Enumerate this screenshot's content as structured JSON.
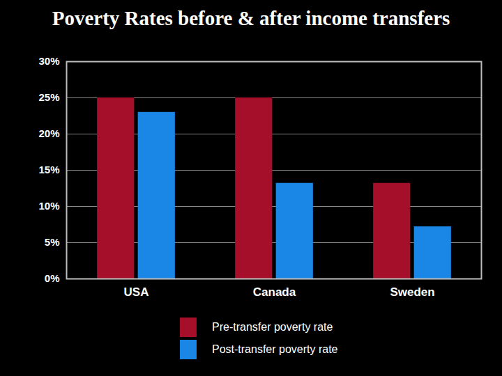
{
  "chart_data": {
    "type": "bar",
    "title": "Poverty Rates before & after income transfers",
    "categories": [
      "USA",
      "Canada",
      "Sweden"
    ],
    "series": [
      {
        "name": "Pre-transfer poverty rate",
        "color": "#a50f2a",
        "values": [
          25,
          25,
          13.2
        ]
      },
      {
        "name": "Post-transfer poverty rate",
        "color": "#1a86e6",
        "values": [
          23,
          13.2,
          7.2
        ]
      }
    ],
    "ylim": [
      0,
      30
    ],
    "yticks": [
      {
        "value": 0,
        "label": "0%"
      },
      {
        "value": 5,
        "label": "5%"
      },
      {
        "value": 10,
        "label": "10%"
      },
      {
        "value": 15,
        "label": "15%"
      },
      {
        "value": 20,
        "label": "20%"
      },
      {
        "value": 25,
        "label": "25%"
      },
      {
        "value": 30,
        "label": "30%"
      }
    ],
    "grid": true,
    "legend": "bottom"
  }
}
